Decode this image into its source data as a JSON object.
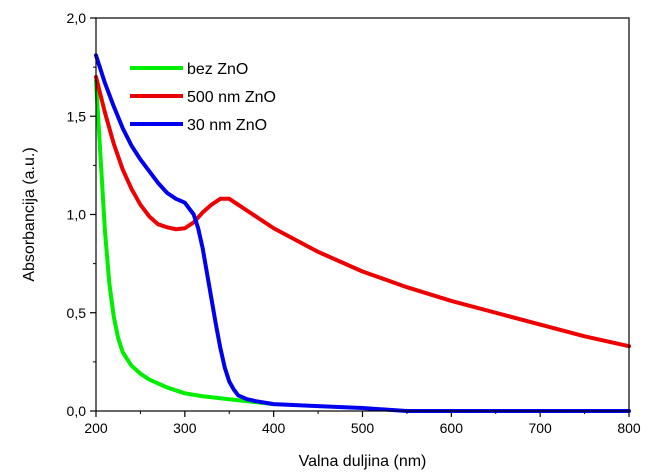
{
  "chart_data": {
    "type": "line",
    "title": "",
    "xlabel": "Valna duljina (nm)",
    "ylabel": "Absorbancija (a.u.)",
    "xlim": [
      200,
      800
    ],
    "ylim": [
      0.0,
      2.0
    ],
    "x_ticks": [
      200,
      300,
      400,
      500,
      600,
      700,
      800
    ],
    "x_tick_labels": [
      "200",
      "300",
      "400",
      "500",
      "600",
      "700",
      "800"
    ],
    "y_ticks": [
      0.0,
      0.5,
      1.0,
      1.5,
      2.0
    ],
    "y_tick_labels": [
      "0,0",
      "0,5",
      "1,0",
      "1,5",
      "2,0"
    ],
    "grid": false,
    "legend_position": "top-left",
    "series": [
      {
        "name": "bez ZnO",
        "color": "#00ee00",
        "x": [
          200,
          205,
          210,
          215,
          220,
          225,
          230,
          240,
          250,
          260,
          280,
          300,
          320,
          350,
          380,
          400
        ],
        "y": [
          1.68,
          1.3,
          0.92,
          0.65,
          0.48,
          0.37,
          0.3,
          0.23,
          0.19,
          0.16,
          0.12,
          0.09,
          0.075,
          0.06,
          0.045,
          0.035
        ]
      },
      {
        "name": "500 nm ZnO",
        "color": "#ee0000",
        "x": [
          200,
          210,
          220,
          230,
          240,
          250,
          260,
          270,
          280,
          290,
          300,
          310,
          320,
          330,
          340,
          350,
          360,
          380,
          400,
          450,
          500,
          550,
          600,
          650,
          700,
          750,
          800
        ],
        "y": [
          1.7,
          1.52,
          1.36,
          1.23,
          1.13,
          1.05,
          0.99,
          0.95,
          0.935,
          0.925,
          0.93,
          0.96,
          1.01,
          1.05,
          1.08,
          1.08,
          1.05,
          0.99,
          0.93,
          0.81,
          0.71,
          0.63,
          0.56,
          0.5,
          0.44,
          0.38,
          0.33
        ]
      },
      {
        "name": "30 nm ZnO",
        "color": "#0000ee",
        "x": [
          200,
          210,
          220,
          230,
          240,
          250,
          260,
          270,
          280,
          290,
          300,
          310,
          315,
          320,
          325,
          330,
          335,
          340,
          345,
          350,
          355,
          360,
          370,
          380,
          400,
          450,
          500,
          550,
          600,
          700,
          800
        ],
        "y": [
          1.81,
          1.67,
          1.55,
          1.44,
          1.35,
          1.28,
          1.22,
          1.16,
          1.11,
          1.08,
          1.06,
          1.0,
          0.93,
          0.83,
          0.7,
          0.57,
          0.44,
          0.32,
          0.22,
          0.15,
          0.11,
          0.08,
          0.06,
          0.05,
          0.035,
          0.025,
          0.015,
          0.0,
          0.0,
          0.0,
          0.0
        ]
      }
    ]
  }
}
